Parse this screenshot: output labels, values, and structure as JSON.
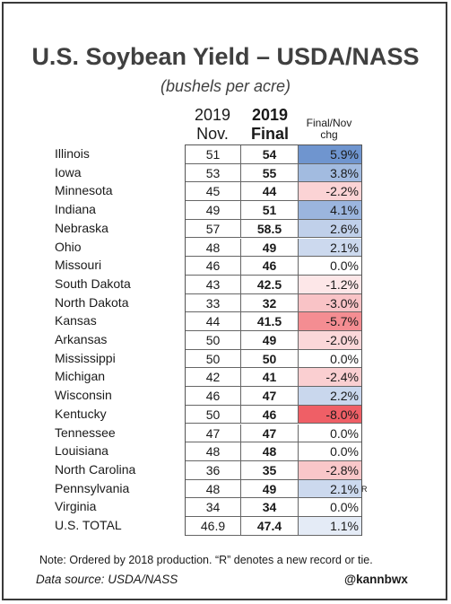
{
  "chart_data": {
    "type": "table",
    "title": "U.S. Soybean Yield – USDA/NASS",
    "subtitle": "(bushels per acre)",
    "columns": [
      {
        "line1": "2019",
        "line2": "Nov."
      },
      {
        "line1": "2019",
        "line2": "Final"
      },
      {
        "line1": "Final/Nov",
        "line2": "chg"
      }
    ],
    "rows": [
      {
        "state": "Illinois",
        "nov": "51",
        "final": "54",
        "chg": "5.9%",
        "chg_value": 5.9,
        "record": ""
      },
      {
        "state": "Iowa",
        "nov": "53",
        "final": "55",
        "chg": "3.8%",
        "chg_value": 3.8,
        "record": ""
      },
      {
        "state": "Minnesota",
        "nov": "45",
        "final": "44",
        "chg": "-2.2%",
        "chg_value": -2.2,
        "record": ""
      },
      {
        "state": "Indiana",
        "nov": "49",
        "final": "51",
        "chg": "4.1%",
        "chg_value": 4.1,
        "record": ""
      },
      {
        "state": "Nebraska",
        "nov": "57",
        "final": "58.5",
        "chg": "2.6%",
        "chg_value": 2.6,
        "record": ""
      },
      {
        "state": "Ohio",
        "nov": "48",
        "final": "49",
        "chg": "2.1%",
        "chg_value": 2.1,
        "record": ""
      },
      {
        "state": "Missouri",
        "nov": "46",
        "final": "46",
        "chg": "0.0%",
        "chg_value": 0.0,
        "record": ""
      },
      {
        "state": "South Dakota",
        "nov": "43",
        "final": "42.5",
        "chg": "-1.2%",
        "chg_value": -1.2,
        "record": ""
      },
      {
        "state": "North Dakota",
        "nov": "33",
        "final": "32",
        "chg": "-3.0%",
        "chg_value": -3.0,
        "record": ""
      },
      {
        "state": "Kansas",
        "nov": "44",
        "final": "41.5",
        "chg": "-5.7%",
        "chg_value": -5.7,
        "record": ""
      },
      {
        "state": "Arkansas",
        "nov": "50",
        "final": "49",
        "chg": "-2.0%",
        "chg_value": -2.0,
        "record": ""
      },
      {
        "state": "Mississippi",
        "nov": "50",
        "final": "50",
        "chg": "0.0%",
        "chg_value": 0.0,
        "record": ""
      },
      {
        "state": "Michigan",
        "nov": "42",
        "final": "41",
        "chg": "-2.4%",
        "chg_value": -2.4,
        "record": ""
      },
      {
        "state": "Wisconsin",
        "nov": "46",
        "final": "47",
        "chg": "2.2%",
        "chg_value": 2.2,
        "record": ""
      },
      {
        "state": "Kentucky",
        "nov": "50",
        "final": "46",
        "chg": "-8.0%",
        "chg_value": -8.0,
        "record": ""
      },
      {
        "state": "Tennessee",
        "nov": "47",
        "final": "47",
        "chg": "0.0%",
        "chg_value": 0.0,
        "record": ""
      },
      {
        "state": "Louisiana",
        "nov": "48",
        "final": "48",
        "chg": "0.0%",
        "chg_value": 0.0,
        "record": ""
      },
      {
        "state": "North Carolina",
        "nov": "36",
        "final": "35",
        "chg": "-2.8%",
        "chg_value": -2.8,
        "record": ""
      },
      {
        "state": "Pennsylvania",
        "nov": "48",
        "final": "49",
        "chg": "2.1%",
        "chg_value": 2.1,
        "record": "R"
      },
      {
        "state": "Virginia",
        "nov": "34",
        "final": "34",
        "chg": "0.0%",
        "chg_value": 0.0,
        "record": ""
      },
      {
        "state": "U.S. TOTAL",
        "nov": "46.9",
        "final": "47.4",
        "chg": "1.1%",
        "chg_value": 1.1,
        "record": ""
      }
    ],
    "note": "Note: Ordered by 2018 production. “R” denotes a new record or tie.",
    "source": "Data source: USDA/NASS",
    "handle": "@kannbwx",
    "colors": {
      "positive": "#6f95cf",
      "negative": "#ef5f66",
      "neutral": "#ffffff"
    }
  }
}
